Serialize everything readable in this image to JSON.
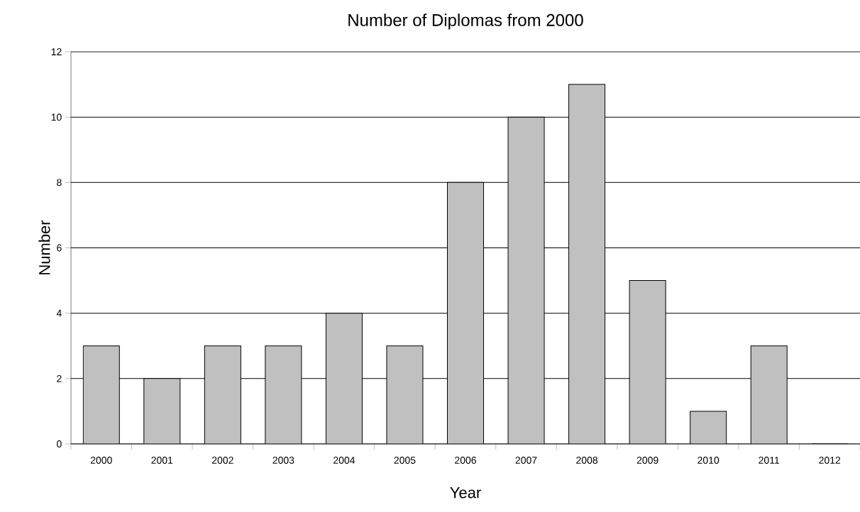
{
  "chart_data": {
    "type": "bar",
    "title": "Number of Diplomas from 2000",
    "xlabel": "Year",
    "ylabel": "Number",
    "categories": [
      "2000",
      "2001",
      "2002",
      "2003",
      "2004",
      "2005",
      "2006",
      "2007",
      "2008",
      "2009",
      "2010",
      "2011",
      "2012"
    ],
    "values": [
      3,
      2,
      3,
      3,
      4,
      3,
      8,
      10,
      11,
      5,
      1,
      3,
      0
    ],
    "color": "#c0c0c0",
    "ylim": [
      0,
      12
    ],
    "yticks": [
      0,
      2,
      4,
      6,
      8,
      10,
      12
    ],
    "grid": "y"
  }
}
